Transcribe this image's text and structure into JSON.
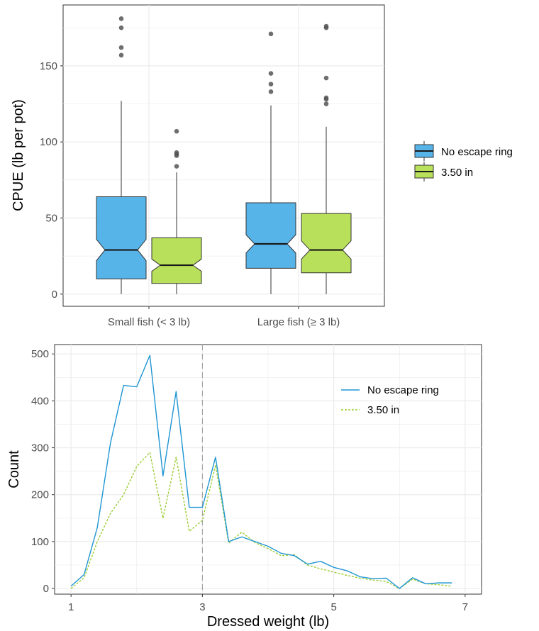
{
  "colors": {
    "no_ring": "#56B4E9",
    "ring_350": "#B8E05A",
    "line_no_ring": "#1F95D2",
    "line_ring": "#9ACD32",
    "median": "#1a1a1a",
    "grid": "#EBEBEB",
    "outlier": "#555555",
    "vline": "#999999"
  },
  "chart_data": [
    {
      "type": "box",
      "ylabel": "CPUE (lb per pot)",
      "ylim": [
        -8,
        190
      ],
      "y_ticks": [
        0,
        50,
        100,
        150
      ],
      "y_tick_labels": [
        "0",
        "50",
        "100",
        "150"
      ],
      "categories": [
        "Small fish (< 3 lb)",
        "Large fish (≥ 3 lb)"
      ],
      "notched": true,
      "grid": true,
      "legend_position": "right",
      "series": [
        {
          "name": "No escape ring",
          "color_key": "no_ring",
          "boxes": [
            {
              "min": 0,
              "q1": 10,
              "notch_low": 22,
              "median": 29,
              "notch_high": 36,
              "q3": 64,
              "whisker_high": 127,
              "outliers": [
                157,
                162,
                175,
                181
              ]
            },
            {
              "min": 0,
              "q1": 17,
              "notch_low": 27,
              "median": 33,
              "notch_high": 39,
              "q3": 60,
              "whisker_high": 124,
              "outliers": [
                133,
                138,
                145,
                171
              ]
            }
          ]
        },
        {
          "name": "3.50 in",
          "color_key": "ring_350",
          "boxes": [
            {
              "min": 0,
              "q1": 7,
              "notch_low": 15,
              "median": 19,
              "notch_high": 23,
              "q3": 37,
              "whisker_high": 80,
              "outliers": [
                84,
                91,
                92,
                93,
                107
              ]
            },
            {
              "min": 0,
              "q1": 14,
              "notch_low": 23,
              "median": 29,
              "notch_high": 35,
              "q3": 53,
              "whisker_high": 110,
              "outliers": [
                125,
                128,
                129,
                142,
                175,
                176
              ]
            }
          ]
        }
      ]
    },
    {
      "type": "line",
      "xlabel": "Dressed weight (lb)",
      "ylabel": "Count",
      "xlim": [
        0.75,
        7.25
      ],
      "ylim": [
        -12,
        520
      ],
      "x_ticks": [
        1,
        3,
        5,
        7
      ],
      "x_tick_labels": [
        "1",
        "3",
        "5",
        "7"
      ],
      "y_ticks": [
        0,
        100,
        200,
        300,
        400,
        500
      ],
      "y_tick_labels": [
        "0",
        "100",
        "200",
        "300",
        "400",
        "500"
      ],
      "vline_x": 3,
      "grid": true,
      "legend_position": "top-right",
      "x": [
        1.0,
        1.2,
        1.4,
        1.6,
        1.8,
        2.0,
        2.2,
        2.4,
        2.6,
        2.8,
        3.0,
        3.2,
        3.4,
        3.6,
        3.8,
        4.0,
        4.2,
        4.4,
        4.6,
        4.8,
        5.0,
        5.2,
        5.4,
        5.6,
        5.8,
        6.0,
        6.2,
        6.4,
        6.6,
        6.8
      ],
      "series": [
        {
          "name": "No escape ring",
          "color_key": "line_no_ring",
          "dash": "solid",
          "values": [
            5,
            30,
            130,
            310,
            433,
            430,
            497,
            240,
            420,
            173,
            173,
            280,
            100,
            110,
            100,
            90,
            75,
            70,
            52,
            58,
            45,
            38,
            25,
            21,
            22,
            0,
            23,
            10,
            12,
            12
          ]
        },
        {
          "name": "3.50 in",
          "color_key": "line_ring",
          "dash": "dashed",
          "values": [
            0,
            23,
            100,
            160,
            200,
            260,
            290,
            150,
            280,
            122,
            145,
            263,
            97,
            120,
            98,
            85,
            70,
            72,
            50,
            42,
            35,
            28,
            22,
            18,
            15,
            0,
            20,
            10,
            8,
            5
          ]
        }
      ]
    }
  ]
}
